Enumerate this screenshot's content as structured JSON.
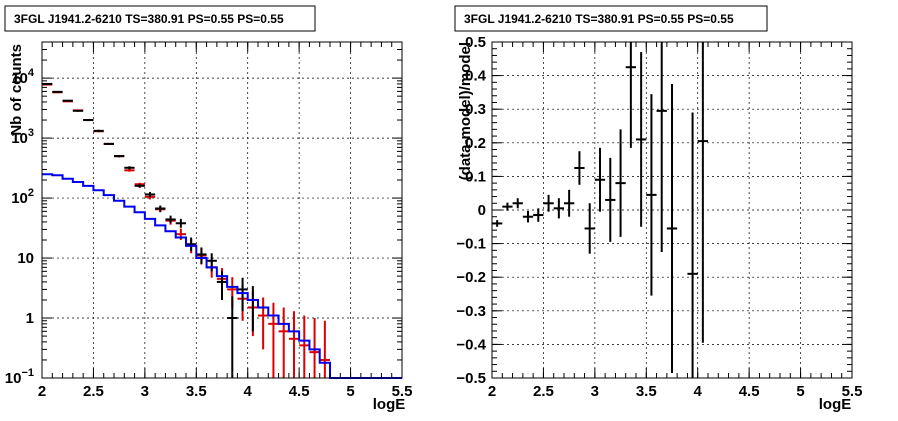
{
  "chart_data": [
    {
      "type": "line",
      "title": "3FGL J1941.2-6210 TS=380.91 PS=0.55 PS=0.55",
      "xlabel": "logE",
      "ylabel": "Nb of counts",
      "xlim": [
        2,
        5.5
      ],
      "ylim": [
        0.1,
        40000
      ],
      "yscale": "log",
      "grid": true,
      "x_ticks": [
        "2",
        "2.5",
        "3",
        "3.5",
        "4",
        "4.5",
        "5",
        "5.5"
      ],
      "y_ticks": [
        {
          "value": 0.1,
          "label": "10^-1"
        },
        {
          "value": 1,
          "label": "1"
        },
        {
          "value": 10,
          "label": "10"
        },
        {
          "value": 100,
          "label": "10^2"
        },
        {
          "value": 1000,
          "label": "10^3"
        },
        {
          "value": 10000,
          "label": "10^4"
        }
      ],
      "series": [
        {
          "color": "#dd0000",
          "style": "errorbar",
          "points": [
            {
              "x": 2.05,
              "y": 7800,
              "lo": 7600,
              "hi": 8000
            },
            {
              "x": 2.15,
              "y": 5800,
              "lo": 5650,
              "hi": 5950
            },
            {
              "x": 2.25,
              "y": 4100,
              "lo": 4000,
              "hi": 4200
            },
            {
              "x": 2.35,
              "y": 2900,
              "lo": 2830,
              "hi": 2970
            },
            {
              "x": 2.45,
              "y": 2000,
              "lo": 1950,
              "hi": 2050
            },
            {
              "x": 2.55,
              "y": 1300,
              "lo": 1260,
              "hi": 1340
            },
            {
              "x": 2.65,
              "y": 800,
              "lo": 775,
              "hi": 825
            },
            {
              "x": 2.75,
              "y": 500,
              "lo": 480,
              "hi": 520
            },
            {
              "x": 2.85,
              "y": 290,
              "lo": 275,
              "hi": 305
            },
            {
              "x": 2.95,
              "y": 170,
              "lo": 160,
              "hi": 180
            },
            {
              "x": 3.05,
              "y": 105,
              "lo": 95,
              "hi": 115
            },
            {
              "x": 3.15,
              "y": 65,
              "lo": 58,
              "hi": 72
            },
            {
              "x": 3.25,
              "y": 42,
              "lo": 36,
              "hi": 48
            },
            {
              "x": 3.35,
              "y": 25,
              "lo": 20,
              "hi": 31
            },
            {
              "x": 3.45,
              "y": 16,
              "lo": 12,
              "hi": 21
            },
            {
              "x": 3.55,
              "y": 11,
              "lo": 7.8,
              "hi": 15
            },
            {
              "x": 3.65,
              "y": 7,
              "lo": 4.7,
              "hi": 10
            },
            {
              "x": 3.75,
              "y": 4.5,
              "lo": 2.7,
              "hi": 6.8
            },
            {
              "x": 3.85,
              "y": 3,
              "lo": 1.5,
              "hi": 4.8
            },
            {
              "x": 3.95,
              "y": 2.1,
              "lo": 0.9,
              "hi": 3.6
            },
            {
              "x": 4.05,
              "y": 1.5,
              "lo": 0.5,
              "hi": 2.8
            },
            {
              "x": 4.15,
              "y": 1.1,
              "lo": 0.3,
              "hi": 2.2
            },
            {
              "x": 4.25,
              "y": 0.8,
              "lo": 0.1,
              "hi": 1.8
            },
            {
              "x": 4.35,
              "y": 0.6,
              "lo": 0.1,
              "hi": 1.5
            },
            {
              "x": 4.45,
              "y": 0.45,
              "lo": 0.1,
              "hi": 1.3
            },
            {
              "x": 4.55,
              "y": 0.35,
              "lo": 0.1,
              "hi": 1.1
            },
            {
              "x": 4.65,
              "y": 0.27,
              "lo": 0.1,
              "hi": 1.0
            },
            {
              "x": 4.75,
              "y": 0.2,
              "lo": 0.1,
              "hi": 0.9
            }
          ]
        },
        {
          "color": "#000000",
          "style": "errorbar",
          "points": [
            {
              "x": 2.05,
              "y": 8000,
              "lo": 7800,
              "hi": 8200
            },
            {
              "x": 2.15,
              "y": 5900,
              "lo": 5750,
              "hi": 6050
            },
            {
              "x": 2.25,
              "y": 4200,
              "lo": 4080,
              "hi": 4320
            },
            {
              "x": 2.35,
              "y": 2850,
              "lo": 2750,
              "hi": 2950
            },
            {
              "x": 2.45,
              "y": 2000,
              "lo": 1920,
              "hi": 2080
            },
            {
              "x": 2.55,
              "y": 1320,
              "lo": 1260,
              "hi": 1380
            },
            {
              "x": 2.65,
              "y": 800,
              "lo": 770,
              "hi": 830
            },
            {
              "x": 2.75,
              "y": 500,
              "lo": 480,
              "hi": 520
            },
            {
              "x": 2.85,
              "y": 320,
              "lo": 300,
              "hi": 340
            },
            {
              "x": 2.95,
              "y": 160,
              "lo": 148,
              "hi": 172
            },
            {
              "x": 3.05,
              "y": 115,
              "lo": 104,
              "hi": 126
            },
            {
              "x": 3.15,
              "y": 67,
              "lo": 59,
              "hi": 75
            },
            {
              "x": 3.25,
              "y": 44,
              "lo": 38,
              "hi": 51
            },
            {
              "x": 3.35,
              "y": 38,
              "lo": 32,
              "hi": 45
            },
            {
              "x": 3.45,
              "y": 17,
              "lo": 13,
              "hi": 22
            },
            {
              "x": 3.55,
              "y": 11.5,
              "lo": 8,
              "hi": 15
            },
            {
              "x": 3.65,
              "y": 9,
              "lo": 6,
              "hi": 12
            },
            {
              "x": 3.75,
              "y": 4,
              "lo": 2,
              "hi": 6
            },
            {
              "x": 3.85,
              "y": 1,
              "lo": 0.1,
              "hi": 2.3
            },
            {
              "x": 3.95,
              "y": 3,
              "lo": 1.3,
              "hi": 4.7
            },
            {
              "x": 4.05,
              "y": 2,
              "lo": 0.6,
              "hi": 3.4
            }
          ]
        },
        {
          "color": "#0000ee",
          "style": "step",
          "bins": [
            {
              "x0": 2.0,
              "x1": 2.1,
              "y": 250
            },
            {
              "x0": 2.1,
              "x1": 2.2,
              "y": 240
            },
            {
              "x0": 2.2,
              "x1": 2.3,
              "y": 210
            },
            {
              "x0": 2.3,
              "x1": 2.4,
              "y": 185
            },
            {
              "x0": 2.4,
              "x1": 2.5,
              "y": 160
            },
            {
              "x0": 2.5,
              "x1": 2.6,
              "y": 135
            },
            {
              "x0": 2.6,
              "x1": 2.7,
              "y": 112
            },
            {
              "x0": 2.7,
              "x1": 2.8,
              "y": 90
            },
            {
              "x0": 2.8,
              "x1": 2.9,
              "y": 72
            },
            {
              "x0": 2.9,
              "x1": 3.0,
              "y": 58
            },
            {
              "x0": 3.0,
              "x1": 3.1,
              "y": 45
            },
            {
              "x0": 3.1,
              "x1": 3.2,
              "y": 35
            },
            {
              "x0": 3.2,
              "x1": 3.3,
              "y": 28
            },
            {
              "x0": 3.3,
              "x1": 3.4,
              "y": 22
            },
            {
              "x0": 3.4,
              "x1": 3.5,
              "y": 16
            },
            {
              "x0": 3.5,
              "x1": 3.6,
              "y": 10
            },
            {
              "x0": 3.6,
              "x1": 3.7,
              "y": 7
            },
            {
              "x0": 3.7,
              "x1": 3.8,
              "y": 5
            },
            {
              "x0": 3.8,
              "x1": 3.9,
              "y": 3.3
            },
            {
              "x0": 3.9,
              "x1": 4.0,
              "y": 2.6
            },
            {
              "x0": 4.0,
              "x1": 4.1,
              "y": 2
            },
            {
              "x0": 4.1,
              "x1": 4.2,
              "y": 1.5
            },
            {
              "x0": 4.2,
              "x1": 4.3,
              "y": 1.1
            },
            {
              "x0": 4.3,
              "x1": 4.4,
              "y": 0.8
            },
            {
              "x0": 4.4,
              "x1": 4.5,
              "y": 0.6
            },
            {
              "x0": 4.5,
              "x1": 4.6,
              "y": 0.42
            },
            {
              "x0": 4.6,
              "x1": 4.7,
              "y": 0.3
            },
            {
              "x0": 4.7,
              "x1": 4.8,
              "y": 0.18
            },
            {
              "x0": 4.8,
              "x1": 5.5,
              "y": 0.1
            }
          ]
        }
      ]
    },
    {
      "type": "scatter",
      "title": "3FGL J1941.2-6210 TS=380.91 PS=0.55 PS=0.55",
      "xlabel": "logE",
      "ylabel": "(data-model)/model",
      "xlim": [
        2,
        5.5
      ],
      "ylim": [
        -0.5,
        0.5
      ],
      "yscale": "linear",
      "grid": true,
      "x_ticks": [
        "2",
        "2.5",
        "3",
        "3.5",
        "4",
        "4.5",
        "5",
        "5.5"
      ],
      "y_ticks": [
        "−0.5",
        "−0.4",
        "−0.3",
        "−0.2",
        "−0.1",
        "0",
        "0.1",
        "0.2",
        "0.3",
        "0.4",
        "0.5"
      ],
      "series": [
        {
          "color": "#000000",
          "style": "errorbar",
          "points": [
            {
              "x": 2.05,
              "y": -0.04,
              "err": 0.01
            },
            {
              "x": 2.15,
              "y": 0.01,
              "err": 0.012
            },
            {
              "x": 2.25,
              "y": 0.02,
              "err": 0.015
            },
            {
              "x": 2.35,
              "y": -0.02,
              "err": 0.017
            },
            {
              "x": 2.45,
              "y": -0.015,
              "err": 0.02
            },
            {
              "x": 2.55,
              "y": 0.02,
              "err": 0.025
            },
            {
              "x": 2.65,
              "y": 0.005,
              "err": 0.03
            },
            {
              "x": 2.75,
              "y": 0.02,
              "err": 0.04
            },
            {
              "x": 2.85,
              "y": 0.125,
              "err": 0.05
            },
            {
              "x": 2.95,
              "y": -0.055,
              "err": 0.075
            },
            {
              "x": 3.05,
              "y": 0.09,
              "err": 0.095
            },
            {
              "x": 3.15,
              "y": 0.03,
              "err": 0.125
            },
            {
              "x": 3.25,
              "y": 0.08,
              "err": 0.16
            },
            {
              "x": 3.35,
              "y": 0.425,
              "err": 0.24
            },
            {
              "x": 3.45,
              "y": 0.21,
              "err": 0.26
            },
            {
              "x": 3.55,
              "y": 0.045,
              "err": 0.3
            },
            {
              "x": 3.65,
              "y": 0.295,
              "err": 0.42
            },
            {
              "x": 3.75,
              "y": -0.055,
              "err": 0.43
            },
            {
              "x": 3.95,
              "y": -0.19,
              "err": 0.48
            },
            {
              "x": 4.05,
              "y": 0.205,
              "err": 0.6
            }
          ]
        }
      ]
    }
  ]
}
